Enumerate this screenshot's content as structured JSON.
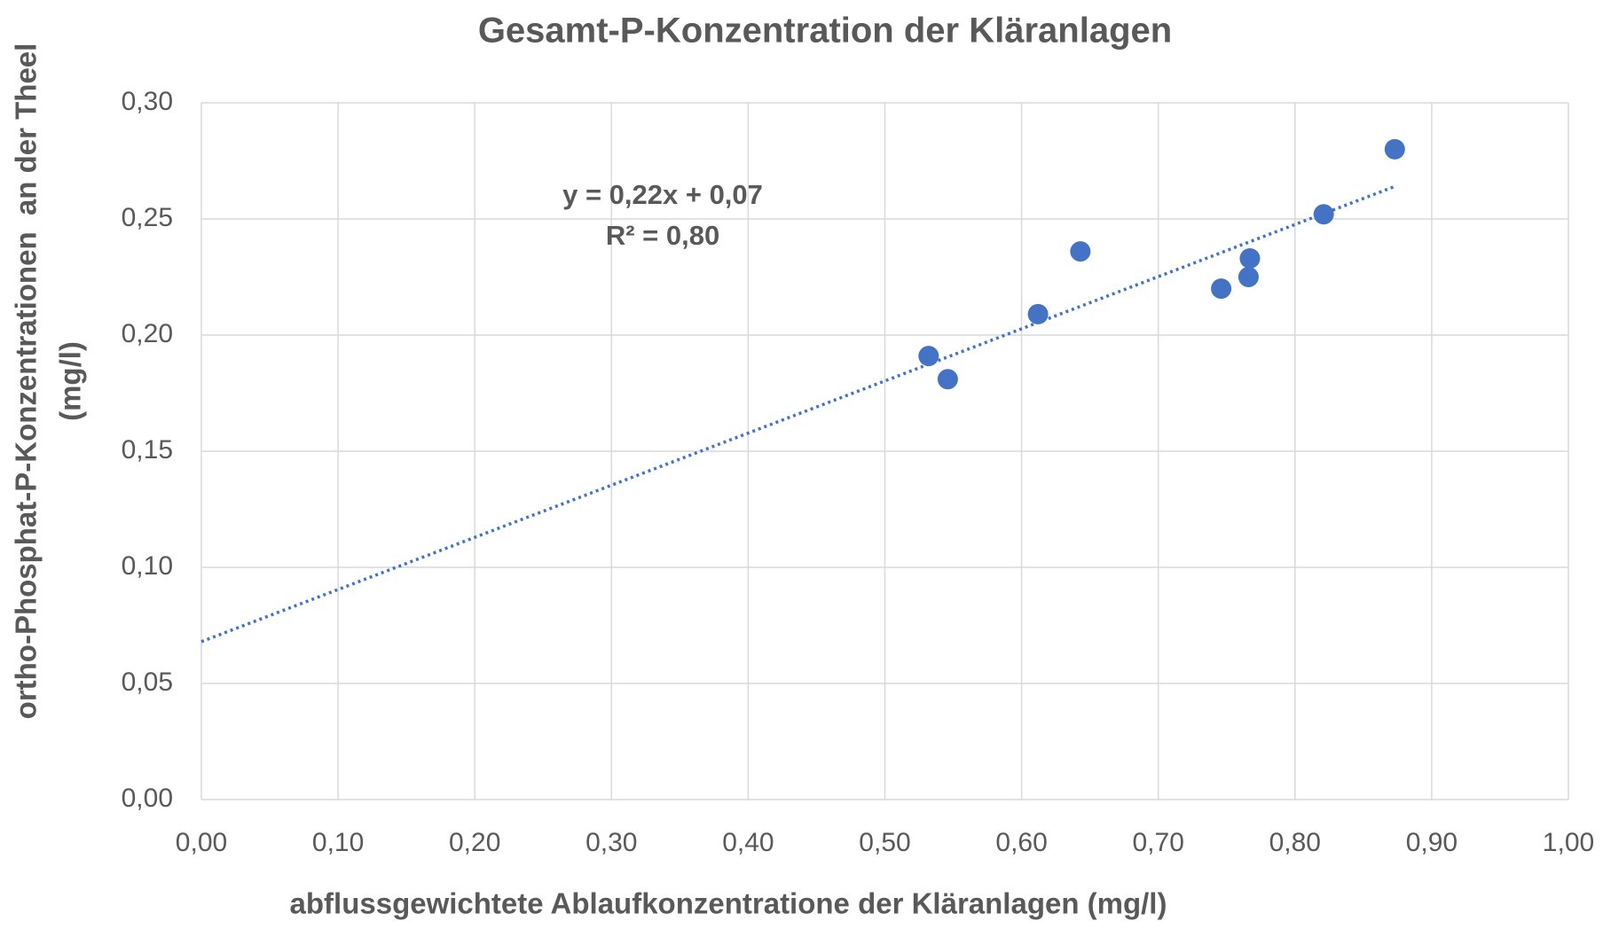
{
  "chart_data": {
    "type": "scatter",
    "title": "Gesamt-P-Konzentration der Kläranlagen",
    "xlabel": "abflussgewichtete Ablaufkonzentratione der Kläranlagen (mg/l)",
    "ylabel": [
      "ortho-Phosphat-P-Konzentrationen  an der Theel",
      "(mg/l)"
    ],
    "series": [
      {
        "color": "#4472c4",
        "x": [
          0.532,
          0.546,
          0.612,
          0.643,
          0.746,
          0.766,
          0.767,
          0.821,
          0.873
        ],
        "values": [
          0.191,
          0.181,
          0.209,
          0.236,
          0.22,
          0.225,
          0.233,
          0.252,
          0.28
        ]
      }
    ],
    "trendline": {
      "color": "#4472c4",
      "x": [
        0,
        0.873
      ],
      "values": [
        0.068,
        0.264
      ],
      "annotations": [
        "y = 0,22x + 0,07",
        "R² = 0,80"
      ]
    },
    "xlim": [
      0,
      1
    ],
    "ylim": [
      0,
      0.3
    ],
    "xticks": [
      {
        "value": 0,
        "label": "0,00"
      },
      {
        "value": 0.1,
        "label": "0,10"
      },
      {
        "value": 0.2,
        "label": "0,20"
      },
      {
        "value": 0.3,
        "label": "0,30"
      },
      {
        "value": 0.4,
        "label": "0,40"
      },
      {
        "value": 0.5,
        "label": "0,50"
      },
      {
        "value": 0.6,
        "label": "0,60"
      },
      {
        "value": 0.7,
        "label": "0,70"
      },
      {
        "value": 0.8,
        "label": "0,80"
      },
      {
        "value": 0.9,
        "label": "0,90"
      },
      {
        "value": 1,
        "label": "1,00"
      }
    ],
    "yticks": [
      {
        "value": 0,
        "label": "0,00"
      },
      {
        "value": 0.05,
        "label": "0,05"
      },
      {
        "value": 0.1,
        "label": "0,10"
      },
      {
        "value": 0.15,
        "label": "0,15"
      },
      {
        "value": 0.2,
        "label": "0,20"
      },
      {
        "value": 0.25,
        "label": "0,25"
      },
      {
        "value": 0.3,
        "label": "0,30"
      }
    ],
    "grid": true
  }
}
